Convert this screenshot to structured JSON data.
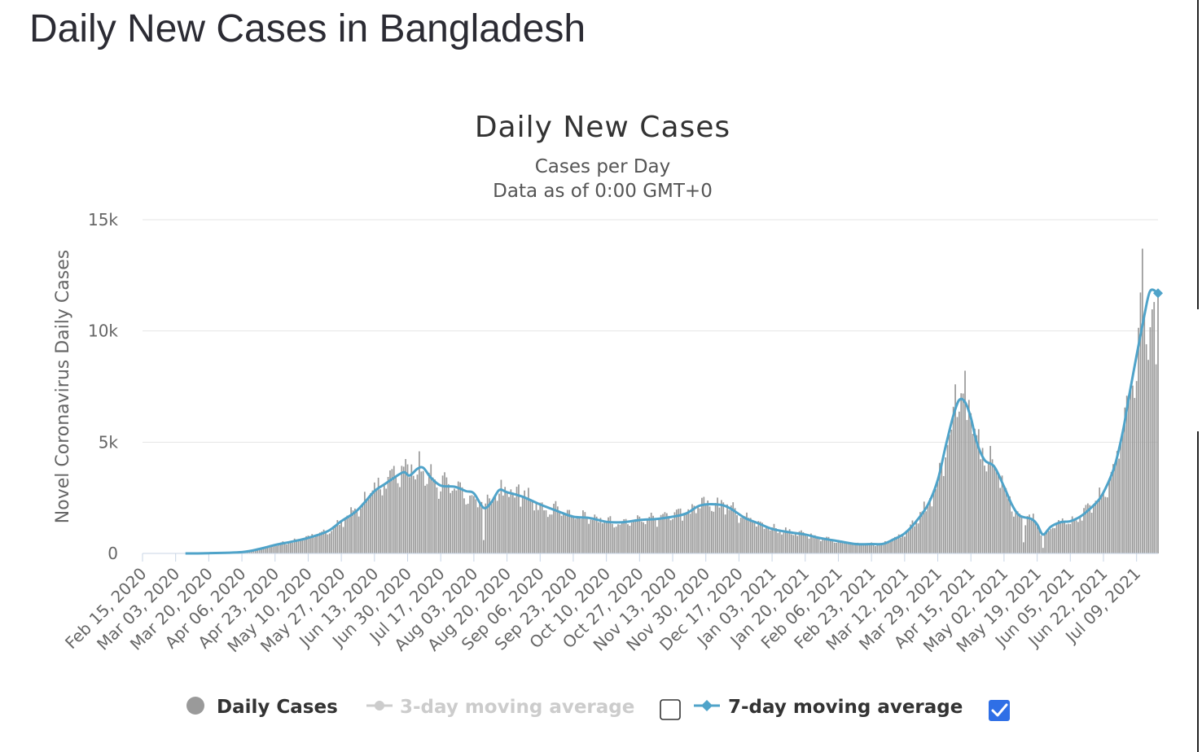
{
  "page": {
    "title": "Daily New Cases in Bangladesh"
  },
  "colors": {
    "bar": "#9a9a9a",
    "avg7": "#4fa3c9",
    "avg3_inactive": "#cccccc",
    "grid": "#e4e4e4",
    "checkbox_checked": "#2f6fe6"
  },
  "chart_data": {
    "type": "bar",
    "title": "Daily New Cases",
    "subtitle_lines": [
      "Cases per Day",
      "Data as of 0:00 GMT+0"
    ],
    "ylabel": "Novel Coronavirus Daily Cases",
    "ylim": [
      0,
      15000
    ],
    "yticks": [
      0,
      5000,
      10000,
      15000
    ],
    "ytick_labels": [
      "0",
      "5k",
      "10k",
      "15k"
    ],
    "x_start": "2020-02-15",
    "x_end": "2021-07-20",
    "xtick_labels": [
      "Feb 15, 2020",
      "Mar 03, 2020",
      "Mar 20, 2020",
      "Apr 06, 2020",
      "Apr 23, 2020",
      "May 10, 2020",
      "May 27, 2020",
      "Jun 13, 2020",
      "Jun 30, 2020",
      "Jul 17, 2020",
      "Aug 03, 2020",
      "Aug 20, 2020",
      "Sep 06, 2020",
      "Sep 23, 2020",
      "Oct 10, 2020",
      "Oct 27, 2020",
      "Nov 13, 2020",
      "Nov 30, 2020",
      "Dec 17, 2020",
      "Jan 03, 2021",
      "Jan 20, 2021",
      "Feb 06, 2021",
      "Feb 23, 2021",
      "Mar 12, 2021",
      "Mar 29, 2021",
      "Apr 15, 2021",
      "May 02, 2021",
      "May 19, 2021",
      "Jun 05, 2021",
      "Jun 22, 2021",
      "Jul 09, 2021"
    ],
    "legend": {
      "placement": "bottom-center",
      "items": [
        {
          "name": "Daily Cases",
          "active": true
        },
        {
          "name": "3-day moving average",
          "active": false,
          "checked": false
        },
        {
          "name": "7-day moving average",
          "active": true,
          "checked": true
        }
      ]
    },
    "trend_7day": [
      [
        "2020-02-15",
        0
      ],
      [
        "2020-03-08",
        0
      ],
      [
        "2020-03-20",
        10
      ],
      [
        "2020-04-06",
        60
      ],
      [
        "2020-04-15",
        200
      ],
      [
        "2020-04-23",
        380
      ],
      [
        "2020-05-01",
        520
      ],
      [
        "2020-05-10",
        700
      ],
      [
        "2020-05-20",
        1000
      ],
      [
        "2020-05-27",
        1450
      ],
      [
        "2020-06-03",
        1850
      ],
      [
        "2020-06-08",
        2300
      ],
      [
        "2020-06-13",
        2800
      ],
      [
        "2020-06-18",
        3100
      ],
      [
        "2020-06-23",
        3400
      ],
      [
        "2020-06-28",
        3650
      ],
      [
        "2020-07-01",
        3500
      ],
      [
        "2020-07-05",
        3800
      ],
      [
        "2020-07-08",
        3850
      ],
      [
        "2020-07-12",
        3400
      ],
      [
        "2020-07-17",
        3050
      ],
      [
        "2020-07-24",
        3000
      ],
      [
        "2020-07-30",
        2800
      ],
      [
        "2020-08-03",
        2700
      ],
      [
        "2020-08-08",
        2050
      ],
      [
        "2020-08-12",
        2300
      ],
      [
        "2020-08-16",
        2850
      ],
      [
        "2020-08-20",
        2750
      ],
      [
        "2020-08-28",
        2550
      ],
      [
        "2020-09-06",
        2200
      ],
      [
        "2020-09-15",
        1900
      ],
      [
        "2020-09-23",
        1650
      ],
      [
        "2020-10-01",
        1600
      ],
      [
        "2020-10-10",
        1420
      ],
      [
        "2020-10-18",
        1400
      ],
      [
        "2020-10-27",
        1500
      ],
      [
        "2020-11-05",
        1550
      ],
      [
        "2020-11-13",
        1650
      ],
      [
        "2020-11-20",
        1800
      ],
      [
        "2020-11-27",
        2150
      ],
      [
        "2020-12-06",
        2200
      ],
      [
        "2020-12-12",
        2050
      ],
      [
        "2020-12-20",
        1600
      ],
      [
        "2020-12-27",
        1350
      ],
      [
        "2021-01-03",
        1100
      ],
      [
        "2021-01-12",
        950
      ],
      [
        "2021-01-20",
        850
      ],
      [
        "2021-01-27",
        700
      ],
      [
        "2021-02-06",
        550
      ],
      [
        "2021-02-15",
        420
      ],
      [
        "2021-02-23",
        420
      ],
      [
        "2021-03-01",
        430
      ],
      [
        "2021-03-06",
        620
      ],
      [
        "2021-03-12",
        900
      ],
      [
        "2021-03-18",
        1450
      ],
      [
        "2021-03-24",
        2200
      ],
      [
        "2021-03-29",
        3300
      ],
      [
        "2021-04-02",
        4800
      ],
      [
        "2021-04-06",
        6200
      ],
      [
        "2021-04-09",
        6900
      ],
      [
        "2021-04-12",
        6800
      ],
      [
        "2021-04-15",
        6100
      ],
      [
        "2021-04-18",
        5000
      ],
      [
        "2021-04-22",
        4200
      ],
      [
        "2021-04-27",
        3900
      ],
      [
        "2021-05-02",
        3000
      ],
      [
        "2021-05-06",
        2200
      ],
      [
        "2021-05-10",
        1700
      ],
      [
        "2021-05-16",
        1550
      ],
      [
        "2021-05-19",
        1300
      ],
      [
        "2021-05-22",
        850
      ],
      [
        "2021-05-26",
        1200
      ],
      [
        "2021-05-31",
        1400
      ],
      [
        "2021-06-05",
        1450
      ],
      [
        "2021-06-10",
        1650
      ],
      [
        "2021-06-15",
        2000
      ],
      [
        "2021-06-20",
        2450
      ],
      [
        "2021-06-24",
        3100
      ],
      [
        "2021-06-28",
        4000
      ],
      [
        "2021-07-02",
        5500
      ],
      [
        "2021-07-05",
        7000
      ],
      [
        "2021-07-09",
        8900
      ],
      [
        "2021-07-13",
        10700
      ],
      [
        "2021-07-16",
        11800
      ],
      [
        "2021-07-20",
        11700
      ]
    ],
    "daily_anomalies": [
      [
        "2020-06-28",
        3900
      ],
      [
        "2020-07-02",
        4000
      ],
      [
        "2020-07-18",
        3500
      ],
      [
        "2020-08-08",
        600
      ],
      [
        "2020-08-26",
        3100
      ],
      [
        "2020-11-28",
        2500
      ],
      [
        "2021-04-07",
        7600
      ],
      [
        "2021-04-10",
        7200
      ],
      [
        "2021-05-12",
        500
      ],
      [
        "2021-05-22",
        250
      ],
      [
        "2021-07-12",
        13700
      ],
      [
        "2021-07-15",
        8700
      ],
      [
        "2021-07-19",
        8500
      ],
      [
        "2021-07-20",
        11600
      ]
    ]
  }
}
